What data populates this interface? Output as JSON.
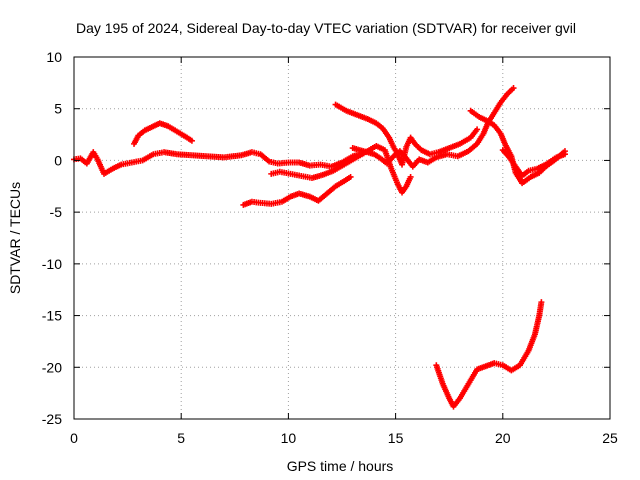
{
  "chart_data": {
    "type": "scatter",
    "title": "Day 195 of 2024, Sidereal Day-to-day VTEC variation (SDTVAR) for receiver gvil",
    "xlabel": "GPS time / hours",
    "ylabel": "SDTVAR / TECUs",
    "xlim": [
      0,
      25
    ],
    "ylim": [
      -25,
      10
    ],
    "xticks": [
      "0",
      "5",
      "10",
      "15",
      "20",
      "25"
    ],
    "yticks": [
      "-25",
      "-20",
      "-15",
      "-10",
      "-5",
      "0",
      "5",
      "10"
    ],
    "grid": true,
    "legend": "none",
    "series_color": "#ff0000",
    "series": [
      {
        "points": [
          [
            0.0,
            0.1
          ],
          [
            0.3,
            0.2
          ],
          [
            0.6,
            -0.3
          ],
          [
            0.9,
            0.8
          ],
          [
            1.1,
            0.1
          ],
          [
            1.4,
            -1.3
          ],
          [
            1.8,
            -0.8
          ],
          [
            2.2,
            -0.4
          ],
          [
            2.7,
            -0.2
          ],
          [
            3.2,
            0.0
          ],
          [
            3.7,
            0.6
          ],
          [
            4.2,
            0.8
          ],
          [
            4.8,
            0.6
          ],
          [
            5.5,
            0.5
          ],
          [
            6.2,
            0.4
          ],
          [
            7.0,
            0.3
          ],
          [
            7.8,
            0.5
          ],
          [
            8.3,
            0.8
          ],
          [
            8.7,
            0.6
          ],
          [
            9.1,
            -0.1
          ],
          [
            9.5,
            -0.3
          ],
          [
            10.0,
            -0.2
          ],
          [
            10.5,
            -0.2
          ],
          [
            11.0,
            -0.5
          ],
          [
            11.5,
            -0.4
          ],
          [
            12.0,
            -0.6
          ],
          [
            12.5,
            -0.2
          ],
          [
            13.0,
            0.4
          ],
          [
            13.5,
            0.7
          ]
        ]
      },
      {
        "points": [
          [
            2.8,
            1.6
          ],
          [
            3.0,
            2.4
          ],
          [
            3.3,
            2.9
          ],
          [
            3.7,
            3.3
          ],
          [
            4.0,
            3.6
          ],
          [
            4.4,
            3.3
          ],
          [
            4.8,
            2.8
          ],
          [
            5.2,
            2.3
          ],
          [
            5.5,
            1.9
          ]
        ]
      },
      {
        "points": [
          [
            7.9,
            -4.3
          ],
          [
            8.3,
            -4.0
          ],
          [
            8.7,
            -4.1
          ],
          [
            9.2,
            -4.2
          ],
          [
            9.7,
            -4.0
          ],
          [
            10.1,
            -3.5
          ],
          [
            10.5,
            -3.2
          ],
          [
            11.0,
            -3.5
          ],
          [
            11.4,
            -3.9
          ],
          [
            11.8,
            -3.2
          ],
          [
            12.2,
            -2.5
          ],
          [
            12.6,
            -2.0
          ],
          [
            12.9,
            -1.6
          ]
        ]
      },
      {
        "points": [
          [
            9.2,
            -1.3
          ],
          [
            9.6,
            -1.1
          ],
          [
            10.1,
            -1.3
          ],
          [
            10.6,
            -1.5
          ],
          [
            11.1,
            -1.7
          ],
          [
            11.6,
            -1.4
          ],
          [
            12.1,
            -1.0
          ],
          [
            12.6,
            -0.4
          ],
          [
            13.1,
            0.2
          ],
          [
            13.6,
            0.8
          ],
          [
            14.1,
            1.4
          ],
          [
            14.5,
            1.0
          ],
          [
            14.8,
            -0.8
          ],
          [
            15.1,
            -2.3
          ],
          [
            15.3,
            -3.1
          ],
          [
            15.5,
            -2.5
          ],
          [
            15.7,
            -1.6
          ]
        ]
      },
      {
        "points": [
          [
            12.2,
            5.4
          ],
          [
            12.7,
            4.8
          ],
          [
            13.2,
            4.4
          ],
          [
            13.7,
            4.0
          ],
          [
            14.1,
            3.6
          ],
          [
            14.4,
            3.1
          ],
          [
            14.7,
            2.2
          ],
          [
            14.9,
            1.3
          ],
          [
            15.1,
            0.6
          ],
          [
            15.3,
            -0.4
          ],
          [
            15.5,
            1.3
          ],
          [
            15.7,
            2.2
          ],
          [
            15.9,
            1.6
          ],
          [
            16.2,
            1.0
          ],
          [
            16.6,
            0.6
          ],
          [
            17.0,
            0.8
          ],
          [
            17.5,
            1.2
          ],
          [
            18.0,
            1.6
          ],
          [
            18.5,
            2.2
          ],
          [
            18.8,
            3.0
          ]
        ]
      },
      {
        "points": [
          [
            13.0,
            1.2
          ],
          [
            13.5,
            0.9
          ],
          [
            14.0,
            0.6
          ],
          [
            14.3,
            0.2
          ],
          [
            14.6,
            -0.3
          ],
          [
            14.9,
            0.4
          ],
          [
            15.2,
            0.9
          ],
          [
            15.5,
            0.2
          ],
          [
            15.8,
            -0.6
          ],
          [
            16.1,
            0.1
          ],
          [
            16.5,
            -0.2
          ],
          [
            16.9,
            0.3
          ],
          [
            17.4,
            0.6
          ],
          [
            17.9,
            0.4
          ],
          [
            18.4,
            0.9
          ],
          [
            18.8,
            1.6
          ],
          [
            19.1,
            2.6
          ],
          [
            19.3,
            3.6
          ],
          [
            19.6,
            4.6
          ],
          [
            19.9,
            5.6
          ],
          [
            20.2,
            6.4
          ],
          [
            20.5,
            7.0
          ]
        ]
      },
      {
        "points": [
          [
            18.5,
            4.8
          ],
          [
            18.9,
            4.2
          ],
          [
            19.3,
            3.8
          ],
          [
            19.6,
            3.4
          ],
          [
            19.9,
            2.6
          ],
          [
            20.1,
            1.6
          ],
          [
            20.4,
            0.4
          ],
          [
            20.6,
            -1.2
          ],
          [
            20.9,
            -2.2
          ],
          [
            21.3,
            -1.6
          ],
          [
            21.7,
            -1.2
          ],
          [
            22.0,
            -0.6
          ],
          [
            22.4,
            0.0
          ],
          [
            22.9,
            0.9
          ]
        ]
      },
      {
        "points": [
          [
            20.0,
            1.0
          ],
          [
            20.3,
            0.3
          ],
          [
            20.6,
            -0.6
          ],
          [
            20.9,
            -1.5
          ],
          [
            21.2,
            -1.0
          ],
          [
            21.6,
            -0.8
          ],
          [
            22.0,
            -0.4
          ],
          [
            22.5,
            0.3
          ],
          [
            22.9,
            0.6
          ]
        ]
      },
      {
        "points": [
          [
            16.9,
            -19.8
          ],
          [
            17.2,
            -21.6
          ],
          [
            17.5,
            -23.0
          ],
          [
            17.7,
            -23.8
          ],
          [
            18.0,
            -23.0
          ],
          [
            18.4,
            -21.6
          ],
          [
            18.8,
            -20.2
          ],
          [
            19.2,
            -19.9
          ],
          [
            19.6,
            -19.6
          ],
          [
            20.0,
            -19.8
          ],
          [
            20.4,
            -20.3
          ],
          [
            20.8,
            -19.8
          ],
          [
            21.2,
            -18.4
          ],
          [
            21.5,
            -16.8
          ],
          [
            21.7,
            -15.0
          ],
          [
            21.8,
            -13.7
          ]
        ]
      }
    ]
  }
}
